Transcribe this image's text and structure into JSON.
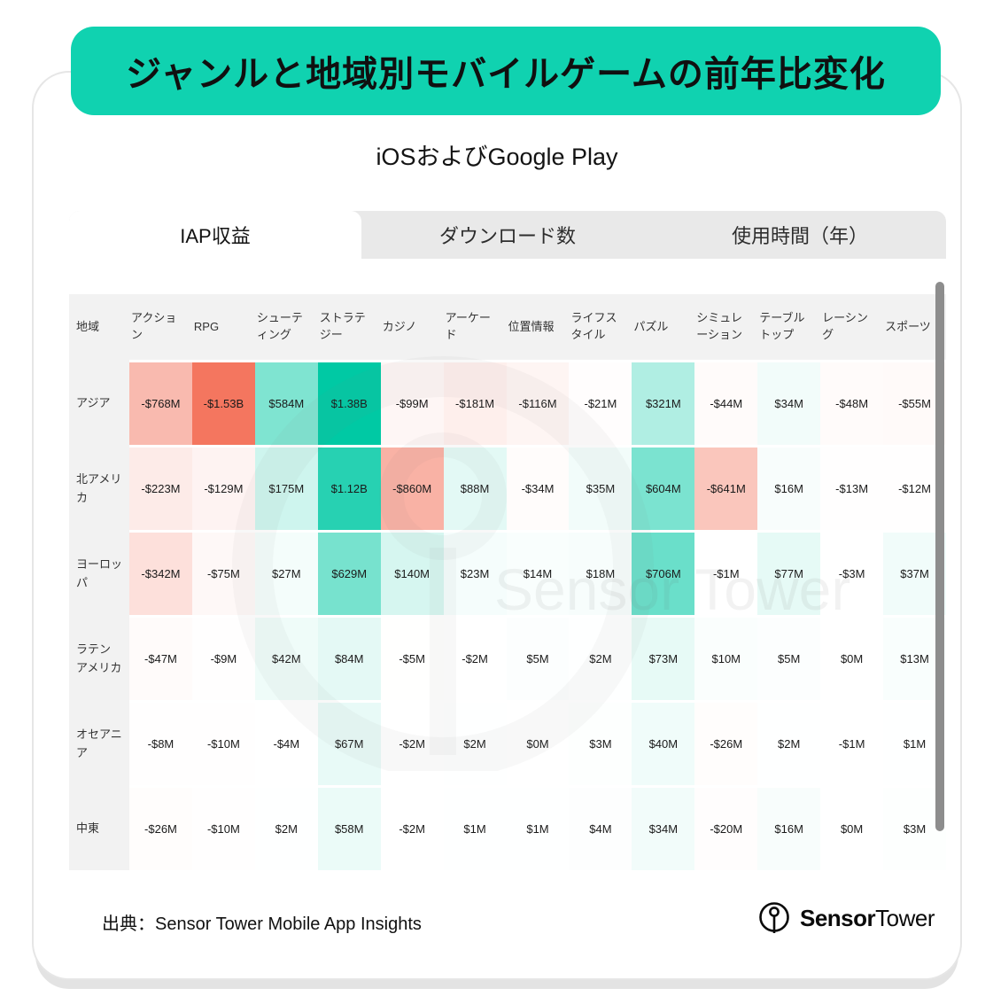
{
  "page": {
    "title": "ジャンルと地域別モバイルゲームの前年比変化",
    "subtitle": "iOSおよびGoogle Play",
    "accent_color": "#10D2B0"
  },
  "tabs": {
    "items": [
      {
        "id": "iap-revenue",
        "label": "IAP収益",
        "active": true
      },
      {
        "id": "downloads",
        "label": "ダウンロード数",
        "active": false
      },
      {
        "id": "usage-time",
        "label": "使用時間（年）",
        "active": false
      }
    ]
  },
  "chart_data": {
    "type": "heatmap",
    "title": "ジャンルと地域別モバイルゲームの前年比変化",
    "subtitle": "iOSおよびGoogle Play",
    "active_metric": "IAP収益",
    "corner_label": "地域",
    "columns": [
      "アクション",
      "RPG",
      "シューティング",
      "ストラテジー",
      "カジノ",
      "アーケード",
      "位置情報",
      "ライフスタイル",
      "パズル",
      "シミュレーション",
      "テーブルトップ",
      "レーシング",
      "スポーツ"
    ],
    "rows": [
      "アジア",
      "北アメリカ",
      "ヨーロッパ",
      "ラテンアメリカ",
      "オセアニア",
      "中東"
    ],
    "labels": [
      [
        "-$768M",
        "-$1.53B",
        "$584M",
        "$1.38B",
        "-$99M",
        "-$181M",
        "-$116M",
        "-$21M",
        "$321M",
        "-$44M",
        "$34M",
        "-$48M",
        "-$55M"
      ],
      [
        "-$223M",
        "-$129M",
        "$175M",
        "$1.12B",
        "-$860M",
        "$88M",
        "-$34M",
        "$35M",
        "$604M",
        "-$641M",
        "$16M",
        "-$13M",
        "-$12M"
      ],
      [
        "-$342M",
        "-$75M",
        "$27M",
        "$629M",
        "$140M",
        "$23M",
        "$14M",
        "$18M",
        "$706M",
        "-$1M",
        "$77M",
        "-$3M",
        "$37M"
      ],
      [
        "-$47M",
        "-$9M",
        "$42M",
        "$84M",
        "-$5M",
        "-$2M",
        "$5M",
        "$2M",
        "$73M",
        "$10M",
        "$5M",
        "$0M",
        "$13M"
      ],
      [
        "-$8M",
        "-$10M",
        "-$4M",
        "$67M",
        "-$2M",
        "$2M",
        "$0M",
        "$3M",
        "$40M",
        "-$26M",
        "$2M",
        "-$1M",
        "$1M"
      ],
      [
        "-$26M",
        "-$10M",
        "$2M",
        "$58M",
        "-$2M",
        "$1M",
        "$1M",
        "$4M",
        "$34M",
        "-$20M",
        "$16M",
        "$0M",
        "$3M"
      ]
    ],
    "values_musd": [
      [
        -768,
        -1530,
        584,
        1380,
        -99,
        -181,
        -116,
        -21,
        321,
        -44,
        34,
        -48,
        -55
      ],
      [
        -223,
        -129,
        175,
        1120,
        -860,
        88,
        -34,
        35,
        604,
        -641,
        16,
        -13,
        -12
      ],
      [
        -342,
        -75,
        27,
        629,
        140,
        23,
        14,
        18,
        706,
        -1,
        77,
        -3,
        37
      ],
      [
        -47,
        -9,
        42,
        84,
        -5,
        -2,
        5,
        2,
        73,
        10,
        5,
        0,
        13
      ],
      [
        -8,
        -10,
        -4,
        67,
        -2,
        2,
        0,
        3,
        40,
        -26,
        2,
        -1,
        1
      ],
      [
        -26,
        -10,
        2,
        58,
        -2,
        1,
        1,
        4,
        34,
        -20,
        16,
        0,
        3
      ]
    ],
    "color_scale": {
      "positive": "#00C9A4",
      "negative": "#F4765F",
      "neutral": "#FFFFFF",
      "positive_max_musd": 1380,
      "negative_max_musd": 1530
    }
  },
  "watermark": {
    "text": "Sensor Tower"
  },
  "footer": {
    "source": "出典：Sensor Tower Mobile App Insights",
    "logo_bold": "Sensor",
    "logo_regular": "Tower"
  }
}
